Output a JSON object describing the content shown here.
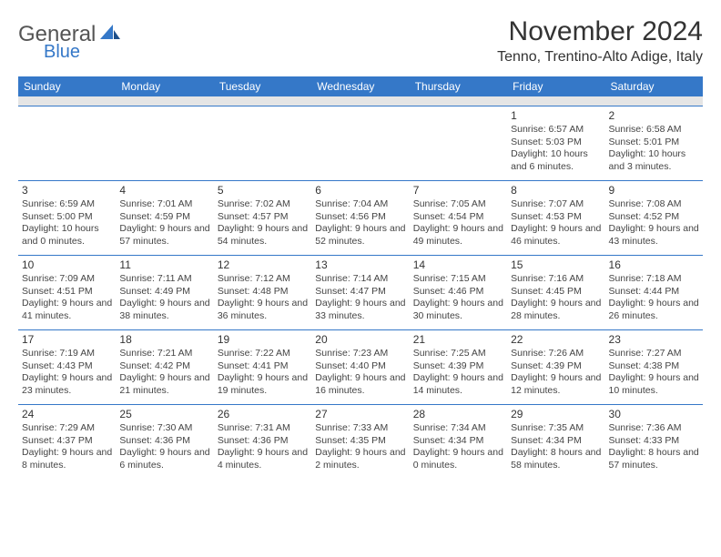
{
  "logo": {
    "general": "General",
    "blue": "Blue"
  },
  "title": "November 2024",
  "location": "Tenno, Trentino-Alto Adige, Italy",
  "colors": {
    "header_bg": "#3578c8",
    "header_text": "#ffffff",
    "sep_bg": "#e5e5e5",
    "border": "#3578c8",
    "text": "#444444"
  },
  "day_headers": [
    "Sunday",
    "Monday",
    "Tuesday",
    "Wednesday",
    "Thursday",
    "Friday",
    "Saturday"
  ],
  "weeks": [
    [
      null,
      null,
      null,
      null,
      null,
      {
        "day": "1",
        "sunrise": "Sunrise: 6:57 AM",
        "sunset": "Sunset: 5:03 PM",
        "daylight": "Daylight: 10 hours and 6 minutes."
      },
      {
        "day": "2",
        "sunrise": "Sunrise: 6:58 AM",
        "sunset": "Sunset: 5:01 PM",
        "daylight": "Daylight: 10 hours and 3 minutes."
      }
    ],
    [
      {
        "day": "3",
        "sunrise": "Sunrise: 6:59 AM",
        "sunset": "Sunset: 5:00 PM",
        "daylight": "Daylight: 10 hours and 0 minutes."
      },
      {
        "day": "4",
        "sunrise": "Sunrise: 7:01 AM",
        "sunset": "Sunset: 4:59 PM",
        "daylight": "Daylight: 9 hours and 57 minutes."
      },
      {
        "day": "5",
        "sunrise": "Sunrise: 7:02 AM",
        "sunset": "Sunset: 4:57 PM",
        "daylight": "Daylight: 9 hours and 54 minutes."
      },
      {
        "day": "6",
        "sunrise": "Sunrise: 7:04 AM",
        "sunset": "Sunset: 4:56 PM",
        "daylight": "Daylight: 9 hours and 52 minutes."
      },
      {
        "day": "7",
        "sunrise": "Sunrise: 7:05 AM",
        "sunset": "Sunset: 4:54 PM",
        "daylight": "Daylight: 9 hours and 49 minutes."
      },
      {
        "day": "8",
        "sunrise": "Sunrise: 7:07 AM",
        "sunset": "Sunset: 4:53 PM",
        "daylight": "Daylight: 9 hours and 46 minutes."
      },
      {
        "day": "9",
        "sunrise": "Sunrise: 7:08 AM",
        "sunset": "Sunset: 4:52 PM",
        "daylight": "Daylight: 9 hours and 43 minutes."
      }
    ],
    [
      {
        "day": "10",
        "sunrise": "Sunrise: 7:09 AM",
        "sunset": "Sunset: 4:51 PM",
        "daylight": "Daylight: 9 hours and 41 minutes."
      },
      {
        "day": "11",
        "sunrise": "Sunrise: 7:11 AM",
        "sunset": "Sunset: 4:49 PM",
        "daylight": "Daylight: 9 hours and 38 minutes."
      },
      {
        "day": "12",
        "sunrise": "Sunrise: 7:12 AM",
        "sunset": "Sunset: 4:48 PM",
        "daylight": "Daylight: 9 hours and 36 minutes."
      },
      {
        "day": "13",
        "sunrise": "Sunrise: 7:14 AM",
        "sunset": "Sunset: 4:47 PM",
        "daylight": "Daylight: 9 hours and 33 minutes."
      },
      {
        "day": "14",
        "sunrise": "Sunrise: 7:15 AM",
        "sunset": "Sunset: 4:46 PM",
        "daylight": "Daylight: 9 hours and 30 minutes."
      },
      {
        "day": "15",
        "sunrise": "Sunrise: 7:16 AM",
        "sunset": "Sunset: 4:45 PM",
        "daylight": "Daylight: 9 hours and 28 minutes."
      },
      {
        "day": "16",
        "sunrise": "Sunrise: 7:18 AM",
        "sunset": "Sunset: 4:44 PM",
        "daylight": "Daylight: 9 hours and 26 minutes."
      }
    ],
    [
      {
        "day": "17",
        "sunrise": "Sunrise: 7:19 AM",
        "sunset": "Sunset: 4:43 PM",
        "daylight": "Daylight: 9 hours and 23 minutes."
      },
      {
        "day": "18",
        "sunrise": "Sunrise: 7:21 AM",
        "sunset": "Sunset: 4:42 PM",
        "daylight": "Daylight: 9 hours and 21 minutes."
      },
      {
        "day": "19",
        "sunrise": "Sunrise: 7:22 AM",
        "sunset": "Sunset: 4:41 PM",
        "daylight": "Daylight: 9 hours and 19 minutes."
      },
      {
        "day": "20",
        "sunrise": "Sunrise: 7:23 AM",
        "sunset": "Sunset: 4:40 PM",
        "daylight": "Daylight: 9 hours and 16 minutes."
      },
      {
        "day": "21",
        "sunrise": "Sunrise: 7:25 AM",
        "sunset": "Sunset: 4:39 PM",
        "daylight": "Daylight: 9 hours and 14 minutes."
      },
      {
        "day": "22",
        "sunrise": "Sunrise: 7:26 AM",
        "sunset": "Sunset: 4:39 PM",
        "daylight": "Daylight: 9 hours and 12 minutes."
      },
      {
        "day": "23",
        "sunrise": "Sunrise: 7:27 AM",
        "sunset": "Sunset: 4:38 PM",
        "daylight": "Daylight: 9 hours and 10 minutes."
      }
    ],
    [
      {
        "day": "24",
        "sunrise": "Sunrise: 7:29 AM",
        "sunset": "Sunset: 4:37 PM",
        "daylight": "Daylight: 9 hours and 8 minutes."
      },
      {
        "day": "25",
        "sunrise": "Sunrise: 7:30 AM",
        "sunset": "Sunset: 4:36 PM",
        "daylight": "Daylight: 9 hours and 6 minutes."
      },
      {
        "day": "26",
        "sunrise": "Sunrise: 7:31 AM",
        "sunset": "Sunset: 4:36 PM",
        "daylight": "Daylight: 9 hours and 4 minutes."
      },
      {
        "day": "27",
        "sunrise": "Sunrise: 7:33 AM",
        "sunset": "Sunset: 4:35 PM",
        "daylight": "Daylight: 9 hours and 2 minutes."
      },
      {
        "day": "28",
        "sunrise": "Sunrise: 7:34 AM",
        "sunset": "Sunset: 4:34 PM",
        "daylight": "Daylight: 9 hours and 0 minutes."
      },
      {
        "day": "29",
        "sunrise": "Sunrise: 7:35 AM",
        "sunset": "Sunset: 4:34 PM",
        "daylight": "Daylight: 8 hours and 58 minutes."
      },
      {
        "day": "30",
        "sunrise": "Sunrise: 7:36 AM",
        "sunset": "Sunset: 4:33 PM",
        "daylight": "Daylight: 8 hours and 57 minutes."
      }
    ]
  ]
}
